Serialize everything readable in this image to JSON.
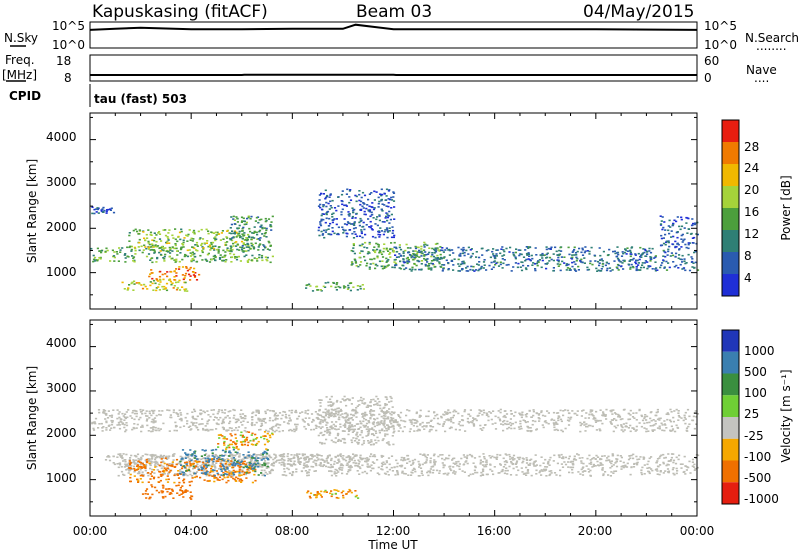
{
  "header": {
    "station": "Kapuskasing (fitACF)",
    "beam": "Beam 03",
    "date": "04/May/2015"
  },
  "nsky_panel": {
    "left_label": "N.Sky",
    "right_label": "N.Search",
    "right_label_dots": "........",
    "left_ticks": [
      "10^5",
      "10^0"
    ],
    "right_ticks": [
      "10^5",
      "10^0"
    ]
  },
  "freq_panel": {
    "left_label_top": "Freq.",
    "left_label_unit": "[MHz]",
    "left_ticks": [
      "18",
      "8"
    ],
    "right_label": "Nave",
    "right_label_dots": "....",
    "right_ticks": [
      "60",
      "0"
    ]
  },
  "cpid_panel": {
    "label": "CPID",
    "text": "tau (fast) 503"
  },
  "power_panel": {
    "ylabel": "Slant Range [km]",
    "yticks": [
      "4000",
      "3000",
      "2000",
      "1000"
    ],
    "colorbar_label": "Power [dB]",
    "colorbar_ticks": [
      "28",
      "24",
      "20",
      "16",
      "12",
      "8",
      "4"
    ]
  },
  "velocity_panel": {
    "ylabel": "Slant Range [km]",
    "yticks": [
      "4000",
      "3000",
      "2000",
      "1000"
    ],
    "colorbar_label": "Velocity [m s⁻¹]",
    "colorbar_ticks": [
      "1000",
      "500",
      "100",
      "25",
      "-25",
      "-100",
      "-500",
      "-1000"
    ]
  },
  "xaxis": {
    "label": "Time UT",
    "ticks": [
      "00:00",
      "04:00",
      "08:00",
      "12:00",
      "16:00",
      "20:00",
      "00:00"
    ]
  },
  "colors": {
    "power_scale": [
      "#1f2fd6",
      "#2a5bb0",
      "#2f7f75",
      "#4c9f3c",
      "#a5d33a",
      "#f0b800",
      "#f07a00",
      "#e81e10"
    ],
    "velocity_scale": [
      "#2036b8",
      "#3a7fb0",
      "#3a8f3f",
      "#6fcf35",
      "#c4c4c0",
      "#f5a800",
      "#f07000",
      "#e51e10"
    ],
    "ground_scatter": "#bdbdb5"
  },
  "chart_data": [
    {
      "type": "line",
      "title": "N.Sky / N.Search",
      "xlim": [
        0,
        24
      ],
      "y_scale": "log",
      "ylim": [
        1,
        100000
      ],
      "series": [
        {
          "name": "N.Sky",
          "x": [
            0,
            1,
            2,
            4,
            6,
            8,
            10,
            10.5,
            12,
            16,
            20,
            24
          ],
          "y": [
            3000,
            5000,
            8000,
            4000,
            4000,
            5000,
            5000,
            30000,
            4000,
            4000,
            4000,
            3000
          ]
        },
        {
          "name": "N.Search",
          "x": [
            0,
            24
          ],
          "y": [
            1,
            1
          ]
        }
      ]
    },
    {
      "type": "line",
      "title": "Freq. / Nave",
      "xlim": [
        0,
        24
      ],
      "series": [
        {
          "name": "Freq.",
          "x": [
            0,
            6,
            6.1,
            12,
            12.1,
            24
          ],
          "y": [
            10.3,
            10.3,
            10.4,
            10.4,
            10.3,
            10.3
          ]
        },
        {
          "name": "Nave",
          "x": [
            0,
            24
          ],
          "y": [
            0,
            0
          ]
        }
      ]
    },
    {
      "type": "heatmap",
      "title": "Power [dB]",
      "xlabel": "Time UT",
      "ylabel": "Slant Range [km]",
      "xlim": [
        0,
        24
      ],
      "ylim": [
        180,
        4600
      ],
      "clim": [
        0,
        32
      ],
      "regions": [
        {
          "t": [
            0.0,
            7.2
          ],
          "r": [
            1250,
            1600
          ],
          "value": 14
        },
        {
          "t": [
            2.3,
            4.3
          ],
          "r": [
            850,
            1150
          ],
          "value": 26
        },
        {
          "t": [
            1.2,
            3.8
          ],
          "r": [
            600,
            850
          ],
          "value": 20
        },
        {
          "t": [
            1.5,
            6.5
          ],
          "r": [
            1500,
            2000
          ],
          "value": 16
        },
        {
          "t": [
            5.5,
            7.2
          ],
          "r": [
            1600,
            2300
          ],
          "value": 12
        },
        {
          "t": [
            8.5,
            10.8
          ],
          "r": [
            600,
            800
          ],
          "value": 14
        },
        {
          "t": [
            10.3,
            14.0
          ],
          "r": [
            1100,
            1700
          ],
          "value": 14
        },
        {
          "t": [
            12.0,
            24.0
          ],
          "r": [
            1050,
            1600
          ],
          "value": 8
        },
        {
          "t": [
            9.0,
            12.0
          ],
          "r": [
            1800,
            2900
          ],
          "value": 6
        },
        {
          "t": [
            0.0,
            1.0
          ],
          "r": [
            2350,
            2500
          ],
          "value": 4
        },
        {
          "t": [
            22.5,
            24.0
          ],
          "r": [
            1600,
            2300
          ],
          "value": 6
        }
      ]
    },
    {
      "type": "heatmap",
      "title": "Velocity [m s⁻¹]",
      "xlabel": "Time UT",
      "ylabel": "Slant Range [km]",
      "xlim": [
        0,
        24
      ],
      "ylim": [
        180,
        4600
      ],
      "clim": [
        -1000,
        1000
      ],
      "regions": [
        {
          "t": [
            0.5,
            11.0
          ],
          "r": [
            1300,
            1600
          ],
          "value": 0,
          "ground": true
        },
        {
          "t": [
            1.0,
            24.0
          ],
          "r": [
            1100,
            1600
          ],
          "value": 0,
          "ground": true
        },
        {
          "t": [
            2.0,
            4.0
          ],
          "r": [
            580,
            900
          ],
          "value": -200
        },
        {
          "t": [
            1.5,
            6.5
          ],
          "r": [
            950,
            1500
          ],
          "value": -150
        },
        {
          "t": [
            3.5,
            7.0
          ],
          "r": [
            1100,
            1700
          ],
          "value": 150
        },
        {
          "t": [
            5.0,
            7.2
          ],
          "r": [
            1700,
            2100
          ],
          "value": -80
        },
        {
          "t": [
            8.5,
            10.8
          ],
          "r": [
            600,
            800
          ],
          "value": -100
        },
        {
          "t": [
            0.0,
            24.0
          ],
          "r": [
            2100,
            2600
          ],
          "value": 0,
          "ground": true
        },
        {
          "t": [
            9.0,
            12.0
          ],
          "r": [
            1800,
            2900
          ],
          "value": 0,
          "ground": true
        }
      ]
    }
  ]
}
